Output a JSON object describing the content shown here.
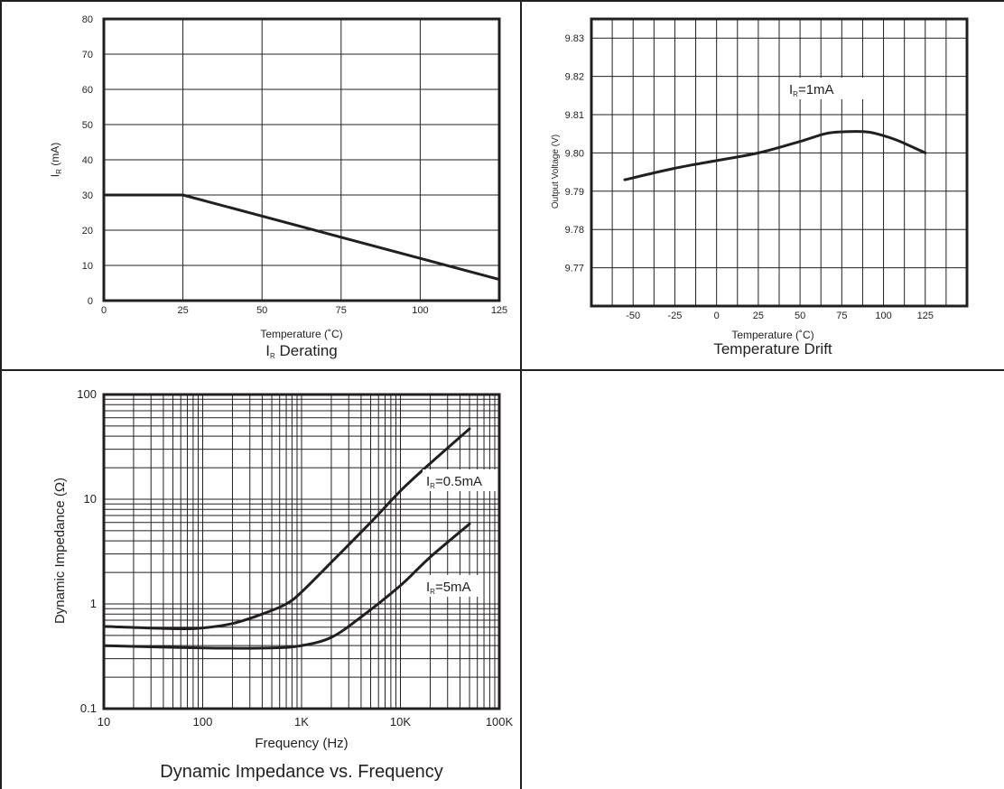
{
  "page": {
    "ink_color": "#231f20",
    "background_color": "#ffffff"
  },
  "chart_data": [
    {
      "id": "derating",
      "type": "line",
      "title_main": "I",
      "title_sub": "R",
      "title_rest": " Derating",
      "xlabel": "Temperature (˚C)",
      "ylabel_main": "I",
      "ylabel_sub": "R",
      "ylabel_rest": " (mA)",
      "xlim": [
        0,
        125
      ],
      "ylim": [
        0,
        80
      ],
      "xticks": [
        0,
        25,
        50,
        75,
        100,
        125
      ],
      "yticks": [
        0,
        10,
        20,
        30,
        40,
        50,
        60,
        70,
        80
      ],
      "x_tick_labels": [
        "0",
        "25",
        "50",
        "75",
        "100",
        "125"
      ],
      "y_tick_labels": [
        "0",
        "10",
        "20",
        "30",
        "40",
        "50",
        "60",
        "70",
        "80"
      ],
      "grid": true,
      "series": [
        {
          "x": [
            0,
            25,
            125
          ],
          "y": [
            30,
            30,
            6
          ]
        }
      ]
    },
    {
      "id": "drift",
      "type": "line",
      "title": "Temperature Drift",
      "xlabel": "Temperature (˚C)",
      "ylabel": "Output Voltage (V)",
      "xlim": [
        -75,
        150
      ],
      "ylim": [
        9.76,
        9.835
      ],
      "xticks": [
        -50,
        -25,
        0,
        25,
        50,
        75,
        100,
        125
      ],
      "yticks": [
        9.77,
        9.78,
        9.79,
        9.8,
        9.81,
        9.82,
        9.83
      ],
      "x_tick_labels": [
        "-50",
        "-25",
        "0",
        "25",
        "50",
        "75",
        "100",
        "125"
      ],
      "y_tick_labels": [
        "9.77",
        "9.78",
        "9.79",
        "9.80",
        "9.81",
        "9.82",
        "9.83"
      ],
      "grid": true,
      "series": [
        {
          "name_main": "I",
          "name_sub": "R",
          "name_rest": "=1mA",
          "x": [
            -55,
            -25,
            0,
            25,
            50,
            65,
            75,
            90,
            100,
            110,
            125
          ],
          "y": [
            9.793,
            9.796,
            9.798,
            9.8,
            9.803,
            9.805,
            9.8055,
            9.8055,
            9.8045,
            9.803,
            9.8
          ]
        }
      ]
    },
    {
      "id": "impedance",
      "type": "line",
      "scale": "log-log",
      "title": "Dynamic Impedance vs. Frequency",
      "xlabel": "Frequency (Hz)",
      "ylabel": "Dynamic Impedance (Ω)",
      "xlim": [
        10,
        100000
      ],
      "ylim": [
        0.1,
        100
      ],
      "xticks": [
        10,
        100,
        1000,
        10000,
        100000
      ],
      "yticks": [
        0.1,
        1,
        10,
        100
      ],
      "x_tick_labels": [
        "10",
        "100",
        "1K",
        "10K",
        "100K"
      ],
      "y_tick_labels": [
        "0.1",
        "1",
        "10",
        "100"
      ],
      "grid": true,
      "series": [
        {
          "name_main": "I",
          "name_sub": "R",
          "name_rest": "=0.5mA",
          "x": [
            10,
            50,
            100,
            200,
            400,
            700,
            1000,
            2000,
            5000,
            10000,
            20000,
            50000
          ],
          "y": [
            0.61,
            0.58,
            0.59,
            0.65,
            0.8,
            1.0,
            1.3,
            2.5,
            6.0,
            12,
            22,
            47
          ]
        },
        {
          "name_main": "I",
          "name_sub": "R",
          "name_rest": "=5mA",
          "x": [
            10,
            100,
            500,
            1000,
            2000,
            4000,
            10000,
            20000,
            50000
          ],
          "y": [
            0.4,
            0.38,
            0.38,
            0.4,
            0.48,
            0.75,
            1.5,
            2.8,
            5.8
          ]
        }
      ]
    }
  ]
}
